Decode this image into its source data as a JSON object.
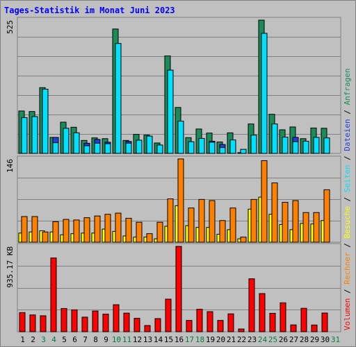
{
  "title": "Tages-Statistik im Monat Juni 2023",
  "chart_data": {
    "type": "bar",
    "categories": [
      "1",
      "2",
      "3",
      "4",
      "5",
      "6",
      "7",
      "8",
      "9",
      "10",
      "11",
      "12",
      "13",
      "14",
      "15",
      "16",
      "17",
      "18",
      "19",
      "20",
      "21",
      "22",
      "23",
      "24",
      "25",
      "26",
      "27",
      "28",
      "29",
      "30",
      "31"
    ],
    "weekend_days": [
      "3",
      "4",
      "10",
      "11",
      "17",
      "18",
      "24",
      "25",
      "31"
    ],
    "panels": [
      {
        "id": "requests",
        "max_label": "525",
        "max": 525,
        "series": [
          {
            "name": "Anfragen",
            "color": "#1a8c5a",
            "values": [
              167,
              165,
              259,
              63,
              123,
              103,
              51,
              61,
              58,
              490,
              51,
              75,
              72,
              41,
              384,
              181,
              62,
              96,
              80,
              45,
              81,
              3,
              116,
              525,
              154,
              93,
              104,
              58,
              100,
              99,
              0
            ]
          },
          {
            "name": "Dateien",
            "color": "#2040e0",
            "values": [
              65,
              55,
              0,
              63,
              0,
              0,
              40,
              55,
              44,
              92,
              47,
              0,
              0,
              0,
              0,
              0,
              0,
              0,
              48,
              35,
              0,
              0,
              0,
              0,
              0,
              0,
              63,
              0,
              0,
              0,
              0
            ]
          },
          {
            "name": "Seiten",
            "color": "#00e0ff",
            "values": [
              141,
              145,
              253,
              42,
              99,
              81,
              30,
              40,
              38,
              433,
              40,
              52,
              68,
              33,
              328,
              127,
              46,
              59,
              44,
              23,
              53,
              16,
              72,
              473,
              116,
              64,
              46,
              48,
              63,
              61,
              0
            ]
          }
        ]
      },
      {
        "id": "visits",
        "max_label": "146",
        "max": 146,
        "series": [
          {
            "name": "Besuche",
            "color": "#ffff00",
            "values": [
              16,
              18,
              20,
              18,
              13,
              15,
              16,
              16,
              23,
              19,
              11,
              9,
              9,
              6,
              28,
              64,
              29,
              26,
              26,
              14,
              22,
              6,
              58,
              79,
              49,
              31,
              22,
              33,
              32,
              38,
              0
            ]
          },
          {
            "name": "Rechner",
            "color": "#ff8000",
            "values": [
              45,
              45,
              18,
              36,
              40,
              39,
              43,
              46,
              49,
              51,
              42,
              35,
              15,
              35,
              76,
              146,
              60,
              75,
              73,
              38,
              60,
              9,
              75,
              143,
              104,
              70,
              73,
              52,
              52,
              92,
              0
            ]
          }
        ]
      },
      {
        "id": "volume",
        "max_label": "935.17 KB",
        "max": 935.17,
        "series": [
          {
            "name": "Volumen",
            "color": "#ff0000",
            "values": [
              210,
              184,
              175,
              808,
              255,
              240,
              160,
              227,
              193,
              296,
              204,
              147,
              68,
              144,
              357,
              935,
              124,
              246,
              220,
              124,
              196,
              30,
              580,
              418,
              202,
              317,
              75,
              257,
              74,
              205,
              0
            ]
          }
        ]
      }
    ],
    "legend": [
      "Volumen",
      "/",
      "Rechner",
      "/",
      "Besuche",
      "/",
      "Seiten",
      "/",
      "Dateien",
      "/",
      "Anfragen"
    ],
    "legend_colors": [
      "#ff0000",
      "#000000",
      "#ff8000",
      "#000000",
      "#ffff00",
      "#000000",
      "#00e0ff",
      "#000000",
      "#2040e0",
      "#000000",
      "#1a8c5a"
    ],
    "grid": true
  }
}
